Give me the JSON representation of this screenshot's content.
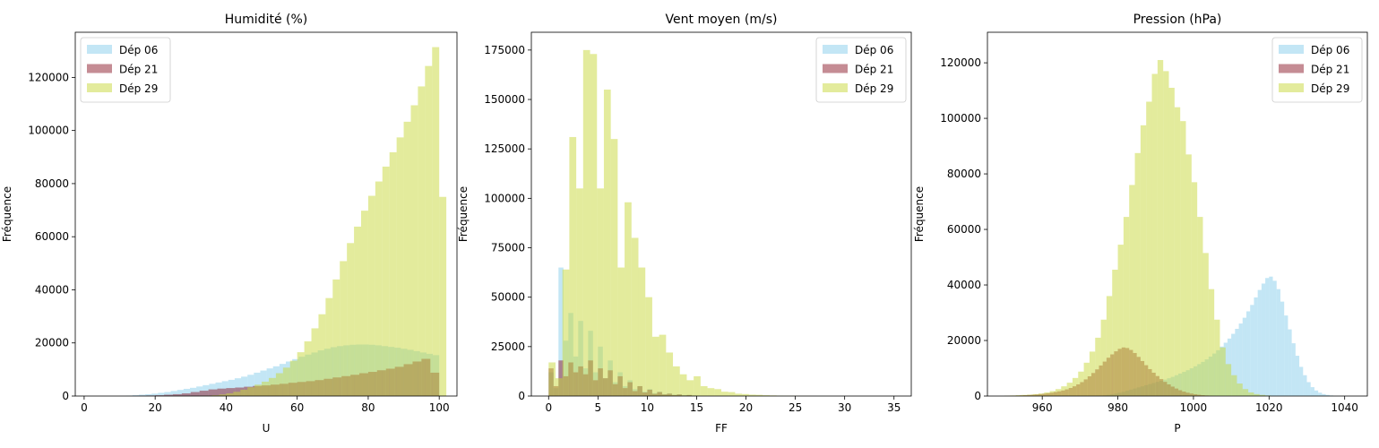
{
  "chart_data": [
    {
      "type": "bar",
      "title": "Humidité (%)",
      "xlabel": "U",
      "ylabel": "Fréquence",
      "xlim": [
        -2.5,
        105
      ],
      "ylim": [
        0,
        137000
      ],
      "xticks": [
        0,
        20,
        40,
        60,
        80,
        100
      ],
      "yticks": [
        0,
        20000,
        40000,
        60000,
        80000,
        100000,
        120000
      ],
      "legend": "upper-left",
      "series": [
        {
          "name": "Dép 06",
          "color": "#87ceeb",
          "bins_start": 10,
          "bin_width": 1.8,
          "values": [
            50,
            150,
            300,
            500,
            700,
            900,
            1200,
            1500,
            1900,
            2300,
            2700,
            3100,
            3600,
            4100,
            4600,
            5100,
            5600,
            6100,
            6700,
            7300,
            8000,
            8800,
            9600,
            10400,
            11200,
            12100,
            13000,
            13900,
            14800,
            15600,
            16400,
            17200,
            17800,
            18400,
            18800,
            19100,
            19300,
            19400,
            19400,
            19300,
            19100,
            18800,
            18500,
            18200,
            17800,
            17400,
            16900,
            16400,
            15900,
            15400
          ]
        },
        {
          "name": "Dép 21",
          "color": "#8b1a2a",
          "bins_start": 0,
          "bin_width": 2.5,
          "values": [
            0,
            0,
            0,
            0,
            0,
            0,
            100,
            200,
            300,
            500,
            700,
            1000,
            1500,
            2000,
            2500,
            2800,
            3000,
            3200,
            3500,
            3800,
            4000,
            4300,
            4600,
            5000,
            5300,
            5600,
            6000,
            6500,
            7000,
            7500,
            8000,
            8600,
            9100,
            9700,
            10300,
            11000,
            12000,
            13000,
            14000,
            8800
          ]
        },
        {
          "name": "Dép 29",
          "color": "#c8d83a",
          "bins_start": 0,
          "bin_width": 2.0,
          "values": [
            0,
            0,
            0,
            0,
            0,
            0,
            0,
            0,
            0,
            0,
            0,
            0,
            0,
            0,
            0,
            0,
            50,
            150,
            300,
            600,
            1000,
            1600,
            2400,
            3300,
            4300,
            5400,
            6800,
            8600,
            10700,
            13300,
            16500,
            20600,
            25500,
            30800,
            36900,
            43900,
            50800,
            57600,
            63800,
            69800,
            75400,
            80800,
            86400,
            91800,
            97400,
            103300,
            109500,
            116600,
            124300,
            131400,
            75000
          ]
        }
      ]
    },
    {
      "type": "bar",
      "title": "Vent moyen (m/s)",
      "xlabel": "FF",
      "ylabel": "Fréquence",
      "xlim": [
        -1.75,
        36.75
      ],
      "ylim": [
        0,
        184000
      ],
      "xticks": [
        0,
        5,
        10,
        15,
        20,
        25,
        30,
        35
      ],
      "yticks": [
        0,
        25000,
        50000,
        75000,
        100000,
        125000,
        150000,
        175000
      ],
      "legend": "upper-right",
      "series": [
        {
          "name": "Dép 06",
          "color": "#87ceeb",
          "bins_start": 0,
          "bin_width": 0.5,
          "values": [
            12000,
            4000,
            65000,
            28000,
            42000,
            20000,
            38000,
            14000,
            33000,
            12000,
            25000,
            9000,
            18000,
            7000,
            12000,
            5000,
            8000,
            3500,
            5000,
            2200,
            3500,
            1500,
            2200,
            1000,
            1400,
            700,
            900,
            500,
            600,
            300
          ]
        },
        {
          "name": "Dép 21",
          "color": "#8b1a2a",
          "bins_start": 0,
          "bin_width": 0.5,
          "values": [
            14000,
            5000,
            18000,
            10000,
            17000,
            12000,
            15000,
            11000,
            18000,
            8000,
            14000,
            9000,
            13000,
            6000,
            10000,
            4000,
            7000,
            2500,
            5000,
            1800,
            3200,
            1100,
            2000,
            800,
            1200,
            500,
            800,
            300,
            500,
            200
          ]
        },
        {
          "name": "Dép 29",
          "color": "#c8d83a",
          "bins_start": 0,
          "bin_width": 0.7,
          "values": [
            17000,
            9000,
            64000,
            131000,
            105000,
            175000,
            173000,
            105000,
            155000,
            130000,
            65000,
            98000,
            80000,
            65000,
            50000,
            30000,
            31000,
            22000,
            15000,
            11000,
            8000,
            10000,
            5000,
            4000,
            3500,
            2200,
            2000,
            1200,
            1000,
            700,
            600,
            400,
            300,
            200,
            150,
            100,
            80,
            60,
            40,
            30,
            20
          ]
        }
      ]
    },
    {
      "type": "bar",
      "title": "Pression (hPa)",
      "xlabel": "P",
      "ylabel": "Fréquence",
      "xlim": [
        945.5,
        1046
      ],
      "ylim": [
        0,
        131000
      ],
      "xticks": [
        960,
        980,
        1000,
        1020,
        1040
      ],
      "yticks": [
        0,
        20000,
        40000,
        60000,
        80000,
        100000,
        120000
      ],
      "legend": "upper-right",
      "series": [
        {
          "name": "Dép 06",
          "color": "#87ceeb",
          "bins_start": 975,
          "bin_width": 1.0,
          "values": [
            150,
            250,
            400,
            600,
            900,
            1200,
            1500,
            1900,
            2300,
            2700,
            3100,
            3500,
            3900,
            4300,
            4700,
            5100,
            5500,
            5900,
            6400,
            6900,
            7500,
            8100,
            8700,
            9300,
            10000,
            10700,
            11500,
            12300,
            13200,
            14200,
            15300,
            16500,
            17800,
            19200,
            20700,
            22400,
            24200,
            26100,
            28200,
            30500,
            32800,
            35500,
            38200,
            40500,
            42500,
            43000,
            41500,
            38500,
            34000,
            29000,
            24000,
            19000,
            14500,
            10500,
            7500,
            5000,
            3200,
            2000,
            1200,
            700,
            400,
            200
          ]
        },
        {
          "name": "Dép 21",
          "color": "#8b1a2a",
          "bins_start": 950,
          "bin_width": 1.0,
          "values": [
            50,
            80,
            120,
            170,
            230,
            300,
            380,
            470,
            580,
            700,
            850,
            1000,
            1200,
            1450,
            1700,
            2000,
            2400,
            2900,
            3500,
            4200,
            5000,
            6000,
            7100,
            8300,
            9600,
            11000,
            12400,
            13800,
            15000,
            16100,
            17000,
            17500,
            17300,
            16600,
            15500,
            14100,
            12600,
            11100,
            9700,
            8400,
            7200,
            6100,
            5100,
            4200,
            3400,
            2700,
            2100,
            1600,
            1200,
            900,
            650,
            450,
            300,
            200,
            130,
            80,
            50
          ]
        },
        {
          "name": "Dép 29",
          "color": "#c8d83a",
          "bins_start": 950,
          "bin_width": 1.5,
          "values": [
            100,
            200,
            300,
            400,
            500,
            700,
            900,
            1300,
            1800,
            2500,
            3500,
            4800,
            6500,
            8800,
            12000,
            16000,
            21000,
            27500,
            36000,
            45500,
            54500,
            64500,
            76000,
            87500,
            97500,
            106000,
            116000,
            121000,
            117000,
            111000,
            104000,
            99000,
            87000,
            77000,
            64500,
            51500,
            38500,
            27500,
            17500,
            11500,
            7500,
            4500,
            2500,
            1300,
            700,
            400,
            200
          ]
        }
      ]
    }
  ]
}
